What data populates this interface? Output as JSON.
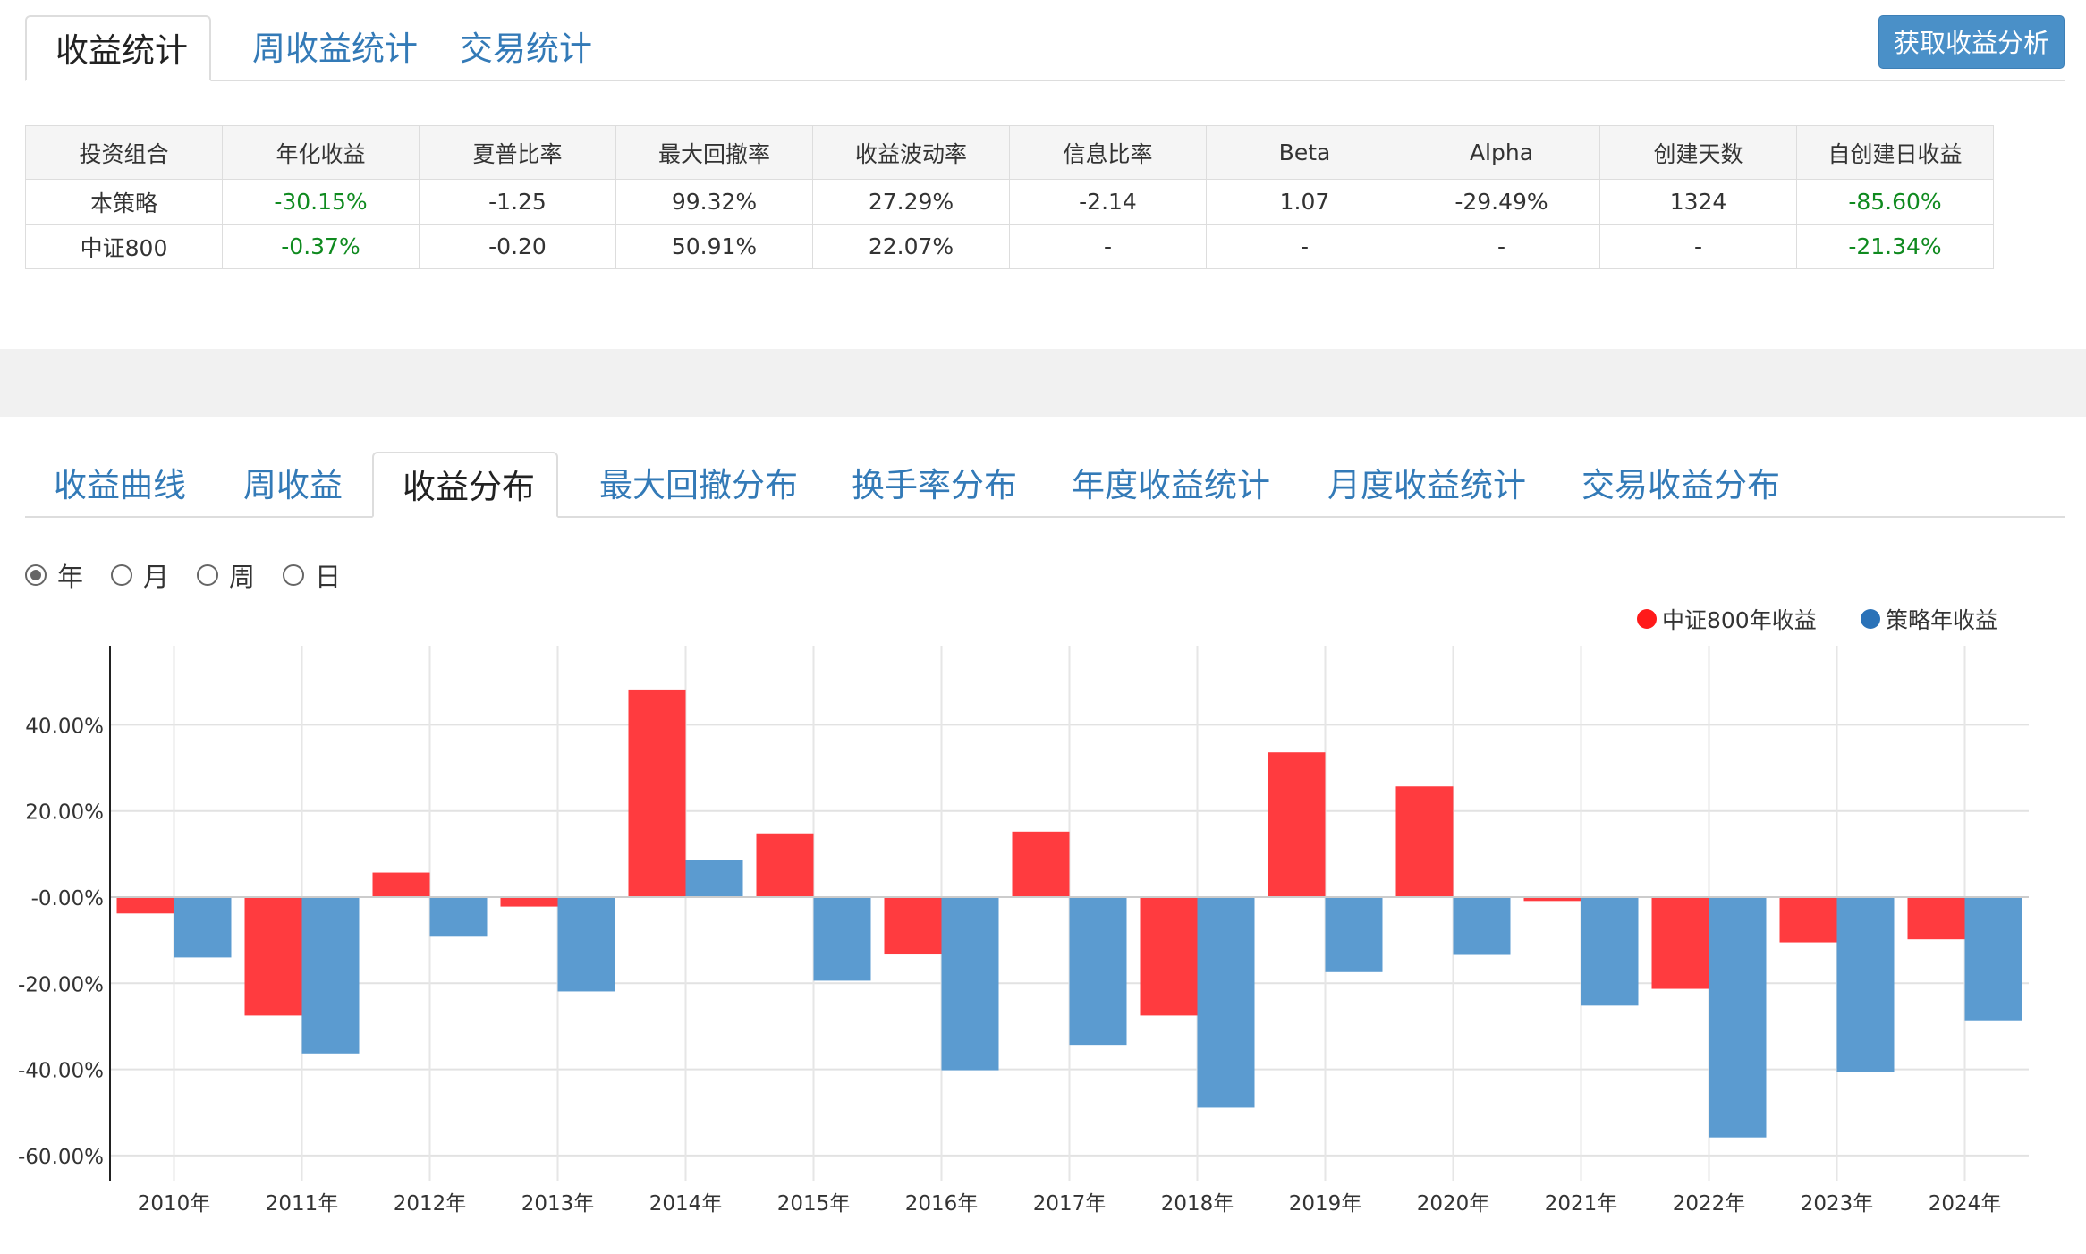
{
  "top_tabs": [
    {
      "label": "收益统计",
      "active": true
    },
    {
      "label": "周收益统计",
      "active": false
    },
    {
      "label": "交易统计",
      "active": false
    }
  ],
  "analyze_button": "获取收益分析",
  "stats_table": {
    "headers": [
      "投资组合",
      "年化收益",
      "夏普比率",
      "最大回撤率",
      "收益波动率",
      "信息比率",
      "Beta",
      "Alpha",
      "创建天数",
      "自创建日收益"
    ],
    "rows": [
      [
        "本策略",
        "-30.15%",
        "-1.25",
        "99.32%",
        "27.29%",
        "-2.14",
        "1.07",
        "-29.49%",
        "1324",
        "-85.60%"
      ],
      [
        "中证800",
        "-0.37%",
        "-0.20",
        "50.91%",
        "22.07%",
        "-",
        "-",
        "-",
        "-",
        "-21.34%"
      ]
    ]
  },
  "chart_tabs": [
    {
      "label": "收益曲线",
      "active": false
    },
    {
      "label": "周收益",
      "active": false
    },
    {
      "label": "收益分布",
      "active": true
    },
    {
      "label": "最大回撤分布",
      "active": false
    },
    {
      "label": "换手率分布",
      "active": false
    },
    {
      "label": "年度收益统计",
      "active": false
    },
    {
      "label": "月度收益统计",
      "active": false
    },
    {
      "label": "交易收益分布",
      "active": false
    }
  ],
  "period_options": [
    {
      "label": "年",
      "checked": true
    },
    {
      "label": "月",
      "checked": false
    },
    {
      "label": "周",
      "checked": false
    },
    {
      "label": "日",
      "checked": false
    }
  ],
  "colors": {
    "green": "#0f8a1f",
    "red_series": "#ff3b3f",
    "blue_series": "#5b9bd0",
    "link": "#337ab7"
  },
  "chart_data": {
    "type": "bar",
    "categories": [
      "2010年",
      "2011年",
      "2012年",
      "2013年",
      "2014年",
      "2015年",
      "2016年",
      "2017年",
      "2018年",
      "2019年",
      "2020年",
      "2021年",
      "2022年",
      "2023年",
      "2024年"
    ],
    "series": [
      {
        "name": "中证800年收益",
        "color": "#ff3b3f",
        "values": [
          -3.8,
          -27.5,
          5.7,
          -2.2,
          48.2,
          14.8,
          -13.3,
          15.2,
          -27.5,
          33.6,
          25.7,
          -0.9,
          -21.3,
          -10.5,
          -9.8
        ]
      },
      {
        "name": "策略年收益",
        "color": "#5b9bd0",
        "values": [
          -14.0,
          -36.3,
          -9.2,
          -21.9,
          8.6,
          -19.4,
          -40.2,
          -34.3,
          -48.9,
          -17.4,
          -13.4,
          -25.2,
          -55.8,
          -40.6,
          -28.6
        ]
      }
    ],
    "yticks": [
      "40.00%",
      "20.00%",
      "-0.00%",
      "-20.00%",
      "-40.00%",
      "-60.00%"
    ],
    "ytick_values": [
      40,
      20,
      0,
      -20,
      -40,
      -60
    ],
    "ylim": [
      -65,
      59
    ],
    "legend_position": "top-right",
    "grid": true
  }
}
